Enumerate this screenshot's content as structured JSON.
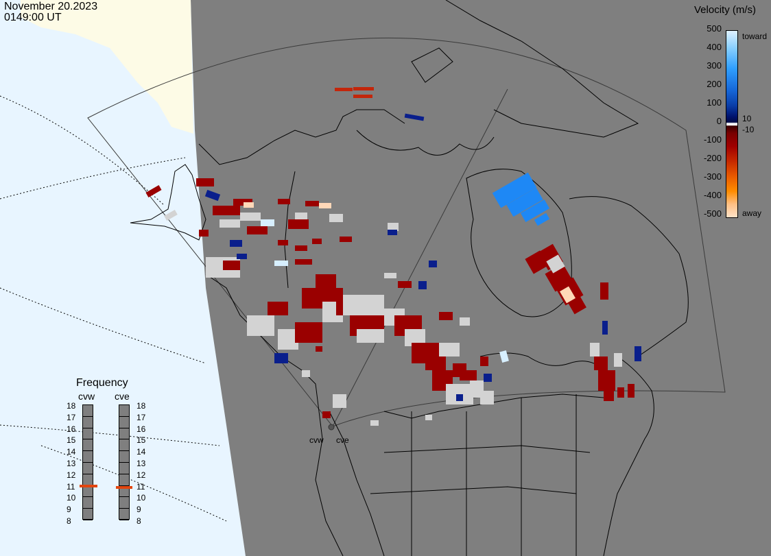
{
  "header": {
    "date": "November 20.2023",
    "time": "0149:00 UT"
  },
  "velocity_scale": {
    "title": "Velocity (m/s)",
    "ticks": [
      "500",
      "400",
      "300",
      "200",
      "100",
      "0",
      "-100",
      "-200",
      "-300",
      "-400",
      "-500"
    ],
    "label_toward": "toward",
    "label_away": "away",
    "label_pos_threshold": "10",
    "label_neg_threshold": "-10"
  },
  "frequency": {
    "title": "Frequency",
    "radars": [
      {
        "name": "cvw",
        "value_mhz": 10.9
      },
      {
        "name": "cve",
        "value_mhz": 10.8
      }
    ],
    "ticks": [
      "18",
      "17",
      "16",
      "15",
      "14",
      "13",
      "12",
      "11",
      "10",
      "9",
      "8"
    ],
    "marker_color": "#e2450e"
  },
  "map": {
    "station_labels": [
      "cvw",
      "cve"
    ],
    "land_color": "#7f7f7f",
    "ocean_color": "#e8f5ff",
    "daylight_land_color": "#fdfbe6"
  }
}
